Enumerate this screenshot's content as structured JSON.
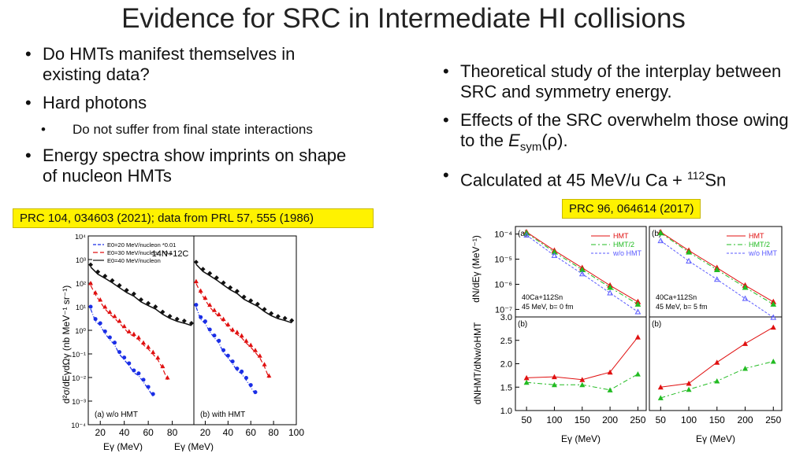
{
  "title": "Evidence for SRC in Intermediate HI collisions",
  "left_bullets": {
    "b1": "Do HMTs manifest themselves in existing data?",
    "b2": "Hard photons",
    "b2_sub": "Do not suffer from final state interactions",
    "b3": "Energy spectra show imprints on shape of nucleon HMTs"
  },
  "right_bullets": {
    "b1": "Theoretical study of the interplay between SRC and symmetry energy.",
    "b2_pre": "Effects of the SRC overwhelm those owing to the ",
    "b2_e": "E",
    "b2_sub": "sym",
    "b2_post": "(ρ).",
    "b3_pre": "Calculated at 45 MeV/u Ca + ",
    "b3_sup": "112",
    "b3_post": "Sn"
  },
  "refs": {
    "left": "PRC 104, 034603 (2021); data from PRL 57, 555 (1986)",
    "right": "PRC 96, 064614 (2017)"
  },
  "chart_data": [
    {
      "type": "line",
      "panels": [
        "(a) w/o HMT",
        "(b) with HMT"
      ],
      "reaction": "14N+12C",
      "xlabel": "Eγ (MeV)",
      "ylabel": "d²σ/dEγdΩγ (nb MeV⁻¹ sr⁻¹)",
      "y_log": true,
      "ylim": [
        0.0001,
        10000.0
      ],
      "xticks_a": [
        "20",
        "40",
        "60",
        "80"
      ],
      "xticks_b": [
        "20",
        "40",
        "60",
        "80",
        "100"
      ],
      "yticks": [
        "10⁻⁴",
        "10⁻³",
        "10⁻²",
        "10⁻¹",
        "10⁰",
        "10¹",
        "10²",
        "10³",
        "10⁴"
      ],
      "legend": [
        "E0=20 MeV/nucleon *0.01",
        "E0=30 MeV/nucleon *0.1",
        "E0=40 MeV/nucleon"
      ],
      "series": [
        {
          "name": "E0=20 MeV/nucleon *0.01",
          "color": "#1a2ee6",
          "data_x": [
            12,
            16,
            20,
            24,
            28,
            32,
            36,
            40,
            44,
            48,
            52,
            56,
            60,
            64
          ],
          "data_y": [
            10,
            3,
            2,
            0.9,
            0.5,
            0.3,
            0.12,
            0.07,
            0.04,
            0.02,
            0.015,
            0.008,
            0.004,
            0.002
          ]
        },
        {
          "name": "E0=30 MeV/nucleon *0.1",
          "color": "#e01010",
          "data_x": [
            12,
            16,
            20,
            24,
            28,
            32,
            36,
            40,
            44,
            48,
            52,
            56,
            60,
            64,
            68,
            72,
            76
          ],
          "data_y": [
            100,
            40,
            20,
            10,
            6,
            4,
            2.5,
            1.5,
            0.9,
            0.7,
            0.5,
            0.3,
            0.2,
            0.12,
            0.07,
            0.03,
            0.01
          ]
        },
        {
          "name": "E0=40 MeV/nucleon",
          "color": "#111111",
          "data_x": [
            12,
            18,
            24,
            30,
            36,
            42,
            48,
            54,
            60,
            66,
            72,
            78,
            84,
            90,
            96
          ],
          "data_y": [
            600,
            300,
            200,
            130,
            80,
            50,
            35,
            20,
            14,
            10,
            6,
            4,
            3,
            2.5,
            2
          ]
        }
      ]
    },
    {
      "type": "line",
      "panels": [
        "(a)",
        "(b)"
      ],
      "top_ylabel": "dN/dEγ (MeV⁻¹)",
      "bottom_ylabel": "dNHMT/dNw/oHMT",
      "xlabel": "Eγ (MeV)",
      "x": [
        50,
        100,
        150,
        200,
        250
      ],
      "xticks": [
        "50",
        "100",
        "150",
        "200",
        "250"
      ],
      "top_yticks": [
        "10⁻⁷",
        "10⁻⁶",
        "10⁻⁵",
        "10⁻⁴"
      ],
      "bottom_yticks": [
        "1.0",
        "1.5",
        "2.0",
        "2.5",
        "3.0"
      ],
      "bottom_ylim": [
        1.0,
        3.0
      ],
      "annotations": [
        "40Ca+112Sn 45 MeV, b= 0 fm",
        "40Ca+112Sn 45 MeV, b= 5 fm"
      ],
      "legend": [
        "HMT",
        "HMT/2",
        "w/o HMT"
      ],
      "ratio_b0": {
        "HMT": [
          1.7,
          1.72,
          1.66,
          1.82,
          2.57
        ],
        "HMT/2": [
          1.6,
          1.55,
          1.55,
          1.44,
          1.78
        ]
      },
      "ratio_b5": {
        "HMT": [
          1.5,
          1.58,
          2.03,
          2.43,
          2.78
        ],
        "HMT/2": [
          1.27,
          1.45,
          1.63,
          1.9,
          2.05
        ]
      }
    }
  ]
}
